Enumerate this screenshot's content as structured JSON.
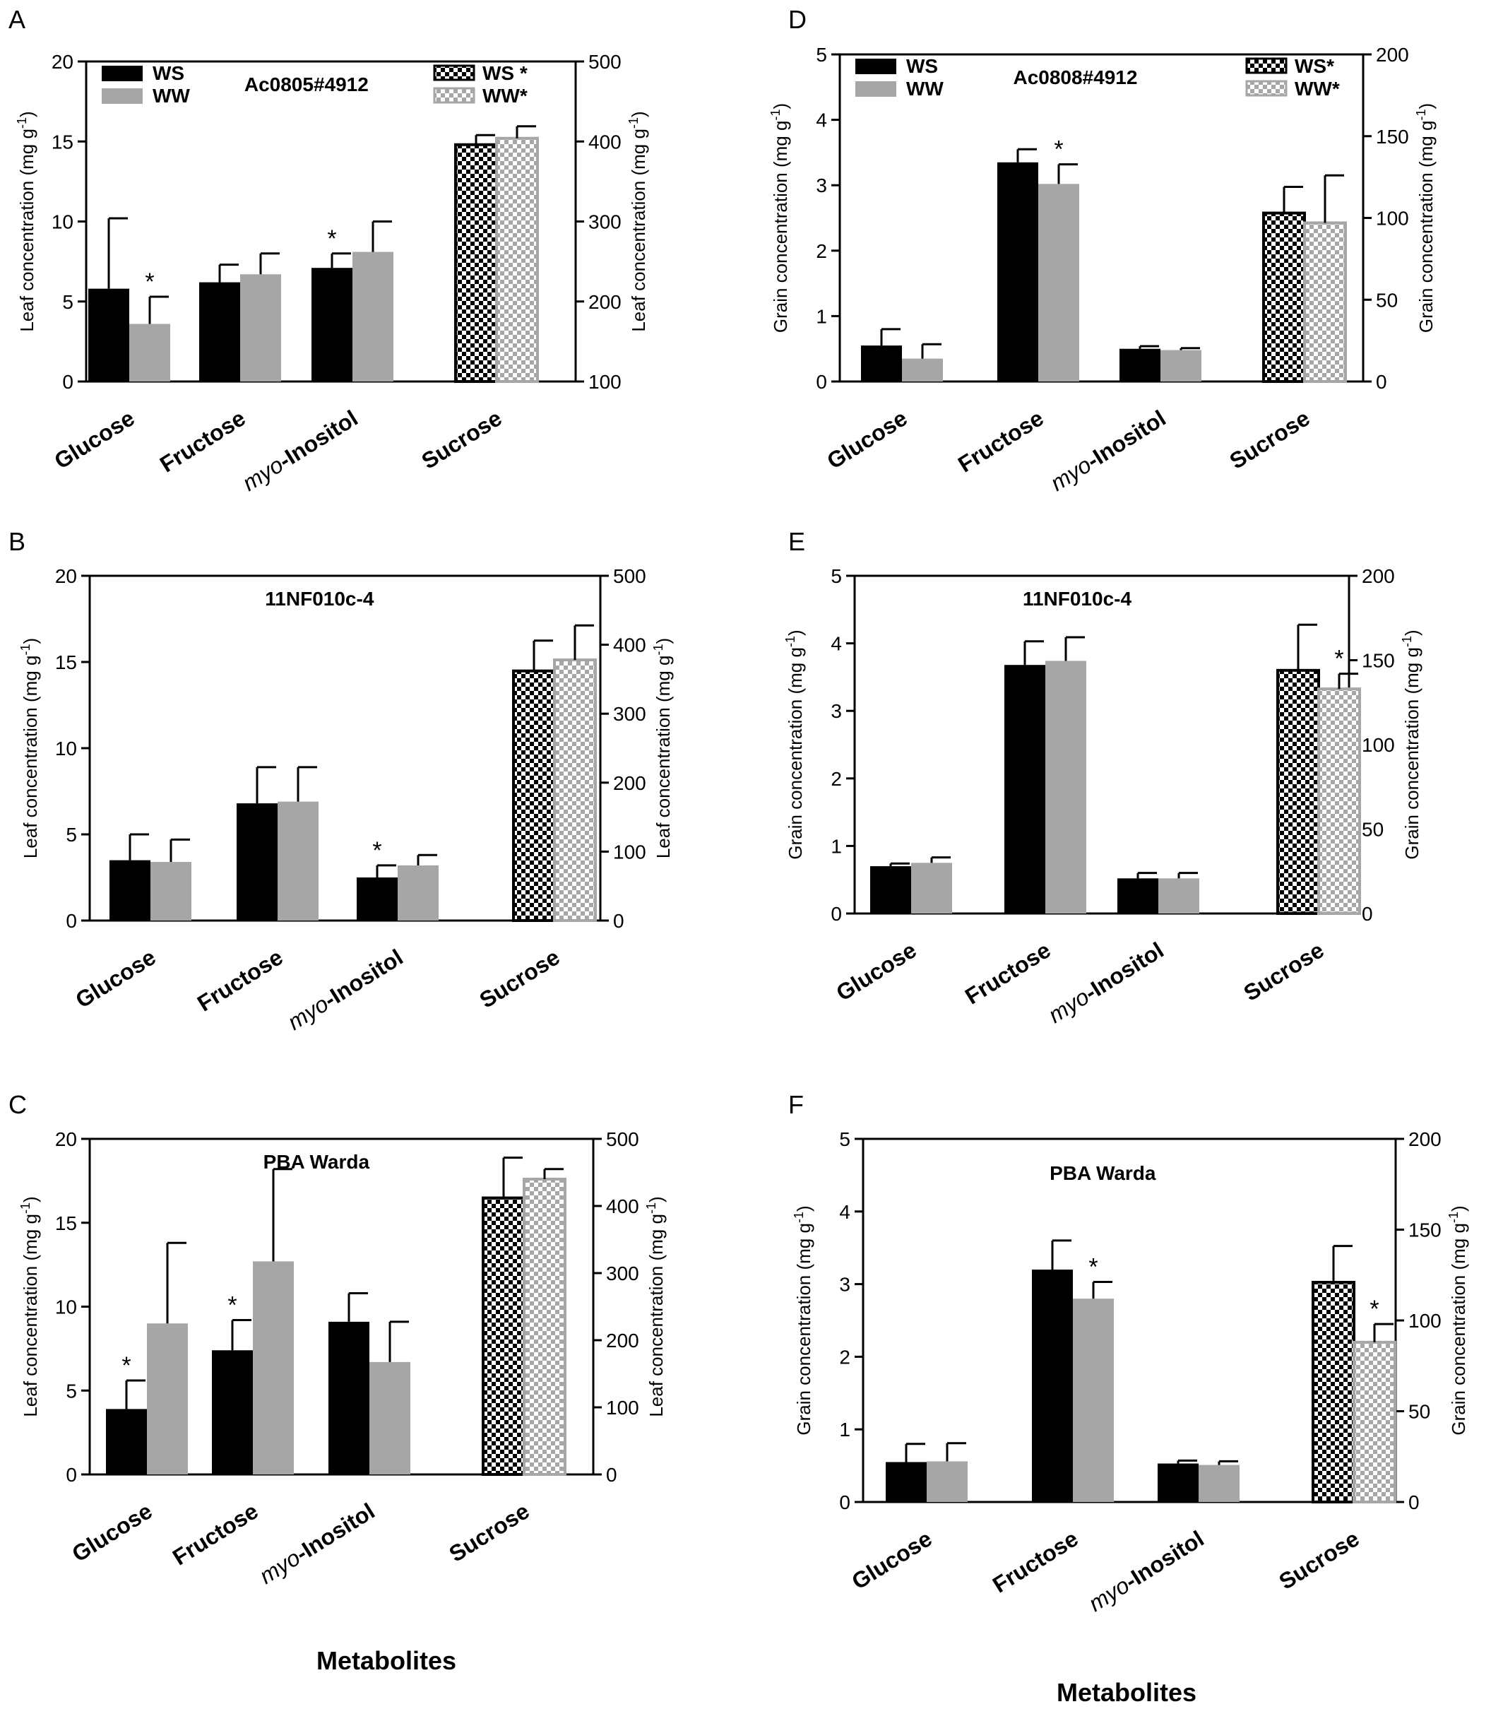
{
  "colors": {
    "ws": "#000000",
    "ww": "#a6a6a6"
  },
  "figure": {
    "xlabel_left": "Metabolites",
    "xlabel_right": "Metabolites"
  },
  "chart_data": [
    {
      "panel": "A",
      "type": "bar",
      "title": "Ac0805#4912",
      "ylabel": "Leaf concentration (mg g",
      "y2label": "Leaf concentration (mg g",
      "ylim": [
        0,
        20
      ],
      "yticks": [
        0,
        5,
        10,
        15,
        20
      ],
      "y2lim": [
        100,
        500
      ],
      "y2ticks": [
        100,
        200,
        300,
        400,
        500
      ],
      "categories": [
        "Glucose",
        "Fructose",
        "myo-Inositol",
        "Sucrose"
      ],
      "secondary_axis_categories": [
        "Sucrose"
      ],
      "series": [
        {
          "name": "WS",
          "values": [
            5.8,
            6.2,
            7.1,
            396
          ],
          "errors": [
            4.4,
            1.1,
            0.9,
            12
          ]
        },
        {
          "name": "WW",
          "values": [
            3.6,
            6.7,
            8.1,
            404
          ],
          "errors": [
            1.7,
            1.3,
            1.9,
            15
          ]
        }
      ],
      "significance": [
        [
          false,
          true
        ],
        [
          false,
          false
        ],
        [
          true,
          false
        ],
        [
          false,
          false
        ]
      ],
      "legend": [
        "WS",
        "WW"
      ],
      "legend2": [
        "WS *",
        "WW*"
      ]
    },
    {
      "panel": "B",
      "type": "bar",
      "title": "11NF010c-4",
      "ylabel": "Leaf concentration (mg g",
      "y2label": "Leaf concentration (mg g",
      "ylim": [
        0,
        20
      ],
      "yticks": [
        0,
        5,
        10,
        15,
        20
      ],
      "y2lim": [
        0,
        500
      ],
      "y2ticks": [
        0,
        100,
        200,
        300,
        400,
        500
      ],
      "categories": [
        "Glucose",
        "Fructose",
        "myo-Inositol",
        "Sucrose"
      ],
      "secondary_axis_categories": [
        "Sucrose"
      ],
      "series": [
        {
          "name": "WS",
          "values": [
            3.5,
            6.8,
            2.5,
            362
          ],
          "errors": [
            1.5,
            2.1,
            0.7,
            44
          ]
        },
        {
          "name": "WW",
          "values": [
            3.4,
            6.9,
            3.2,
            378
          ],
          "errors": [
            1.3,
            2.0,
            0.6,
            50
          ]
        }
      ],
      "significance": [
        [
          false,
          false
        ],
        [
          false,
          false
        ],
        [
          true,
          false
        ],
        [
          false,
          false
        ]
      ]
    },
    {
      "panel": "C",
      "type": "bar",
      "title": "PBA Warda",
      "ylabel": "Leaf concentration (mg g",
      "y2label": "Leaf concentration (mg g",
      "ylim": [
        0,
        20
      ],
      "yticks": [
        0,
        5,
        10,
        15,
        20
      ],
      "y2lim": [
        0,
        500
      ],
      "y2ticks": [
        0,
        100,
        200,
        300,
        400,
        500
      ],
      "categories": [
        "Glucose",
        "Fructose",
        "myo-Inositol",
        "Sucrose"
      ],
      "secondary_axis_categories": [
        "Sucrose"
      ],
      "series": [
        {
          "name": "WS",
          "values": [
            3.9,
            7.4,
            9.1,
            412
          ],
          "errors": [
            1.7,
            1.8,
            1.7,
            60
          ]
        },
        {
          "name": "WW",
          "values": [
            9.0,
            12.7,
            6.7,
            440
          ],
          "errors": [
            4.8,
            5.5,
            2.4,
            15
          ]
        }
      ],
      "significance": [
        [
          true,
          false
        ],
        [
          true,
          false
        ],
        [
          false,
          false
        ],
        [
          false,
          false
        ]
      ]
    },
    {
      "panel": "D",
      "type": "bar",
      "title": "Ac0808#4912",
      "ylabel": "Grain concentration  (mg g",
      "y2label": "Grain concentration  (mg g",
      "ylim": [
        0,
        5
      ],
      "yticks": [
        0,
        1,
        2,
        3,
        4,
        5
      ],
      "y2lim": [
        0,
        200
      ],
      "y2ticks": [
        0,
        50,
        100,
        150,
        200
      ],
      "categories": [
        "Glucose",
        "Fructose",
        "myo-Inositol",
        "Sucrose"
      ],
      "secondary_axis_categories": [
        "Sucrose"
      ],
      "series": [
        {
          "name": "WS",
          "values": [
            0.55,
            3.35,
            0.5,
            103
          ],
          "errors": [
            0.25,
            0.2,
            0.04,
            16
          ]
        },
        {
          "name": "WW",
          "values": [
            0.35,
            3.02,
            0.48,
            97
          ],
          "errors": [
            0.22,
            0.3,
            0.03,
            29
          ]
        }
      ],
      "significance": [
        [
          false,
          false
        ],
        [
          false,
          true
        ],
        [
          false,
          false
        ],
        [
          false,
          false
        ]
      ],
      "legend": [
        "WS",
        "WW"
      ],
      "legend2": [
        "WS*",
        "WW*"
      ]
    },
    {
      "panel": "E",
      "type": "bar",
      "title": "11NF010c-4",
      "ylabel": "Grain concentration  (mg g",
      "y2label": "Grain concentration  (mg g",
      "ylim": [
        0,
        5
      ],
      "yticks": [
        0,
        1,
        2,
        3,
        4,
        5
      ],
      "y2lim": [
        0,
        200
      ],
      "y2ticks": [
        0,
        50,
        100,
        150,
        200
      ],
      "categories": [
        "Glucose",
        "Fructose",
        "myo-Inositol",
        "Sucrose"
      ],
      "secondary_axis_categories": [
        "Sucrose"
      ],
      "series": [
        {
          "name": "WS",
          "values": [
            0.7,
            3.68,
            0.52,
            144
          ],
          "errors": [
            0.04,
            0.35,
            0.08,
            27
          ]
        },
        {
          "name": "WW",
          "values": [
            0.75,
            3.74,
            0.52,
            133
          ],
          "errors": [
            0.08,
            0.35,
            0.08,
            9
          ]
        }
      ],
      "significance": [
        [
          false,
          false
        ],
        [
          false,
          false
        ],
        [
          false,
          false
        ],
        [
          false,
          true
        ]
      ]
    },
    {
      "panel": "F",
      "type": "bar",
      "title": "PBA Warda",
      "ylabel": "Grain concentration  (mg g",
      "y2label": "Grain concentration  (mg g",
      "ylim": [
        0,
        5
      ],
      "yticks": [
        0,
        1,
        2,
        3,
        4,
        5
      ],
      "y2lim": [
        0,
        200
      ],
      "y2ticks": [
        0,
        50,
        100,
        150,
        200
      ],
      "categories": [
        "Glucose",
        "Fructose",
        "myo-Inositol",
        "Sucrose"
      ],
      "secondary_axis_categories": [
        "Sucrose"
      ],
      "series": [
        {
          "name": "WS",
          "values": [
            0.55,
            3.2,
            0.53,
            121
          ],
          "errors": [
            0.25,
            0.4,
            0.04,
            20
          ]
        },
        {
          "name": "WW",
          "values": [
            0.56,
            2.8,
            0.51,
            88
          ],
          "errors": [
            0.25,
            0.23,
            0.05,
            10
          ]
        }
      ],
      "significance": [
        [
          false,
          false
        ],
        [
          false,
          true
        ],
        [
          false,
          false
        ],
        [
          false,
          true
        ]
      ]
    }
  ]
}
